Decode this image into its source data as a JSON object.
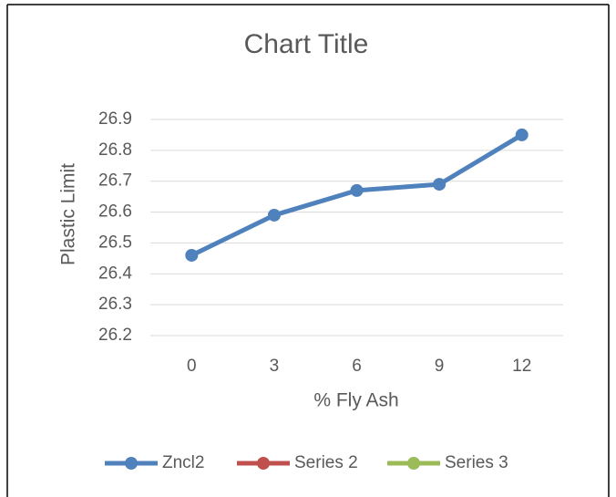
{
  "chart_data": {
    "type": "line",
    "title": "Chart Title",
    "x_label": "% Fly Ash",
    "y_label": "Plastic Limit",
    "categories": [
      "0",
      "3",
      "6",
      "9",
      "12"
    ],
    "series": [
      {
        "name": "Zncl2",
        "color": "#4f81bd",
        "values": [
          26.46,
          26.59,
          26.67,
          26.69,
          26.85
        ]
      },
      {
        "name": "Series 2",
        "color": "#c0504d",
        "values": [
          null,
          null,
          null,
          null,
          null
        ]
      },
      {
        "name": "Series 3",
        "color": "#9bbb59",
        "values": [
          null,
          null,
          null,
          null,
          null
        ]
      }
    ],
    "ylim": [
      26.2,
      26.9
    ],
    "yticks": [
      26.2,
      26.3,
      26.4,
      26.5,
      26.6,
      26.7,
      26.8,
      26.9
    ],
    "grid": true,
    "legend": "bottom"
  }
}
